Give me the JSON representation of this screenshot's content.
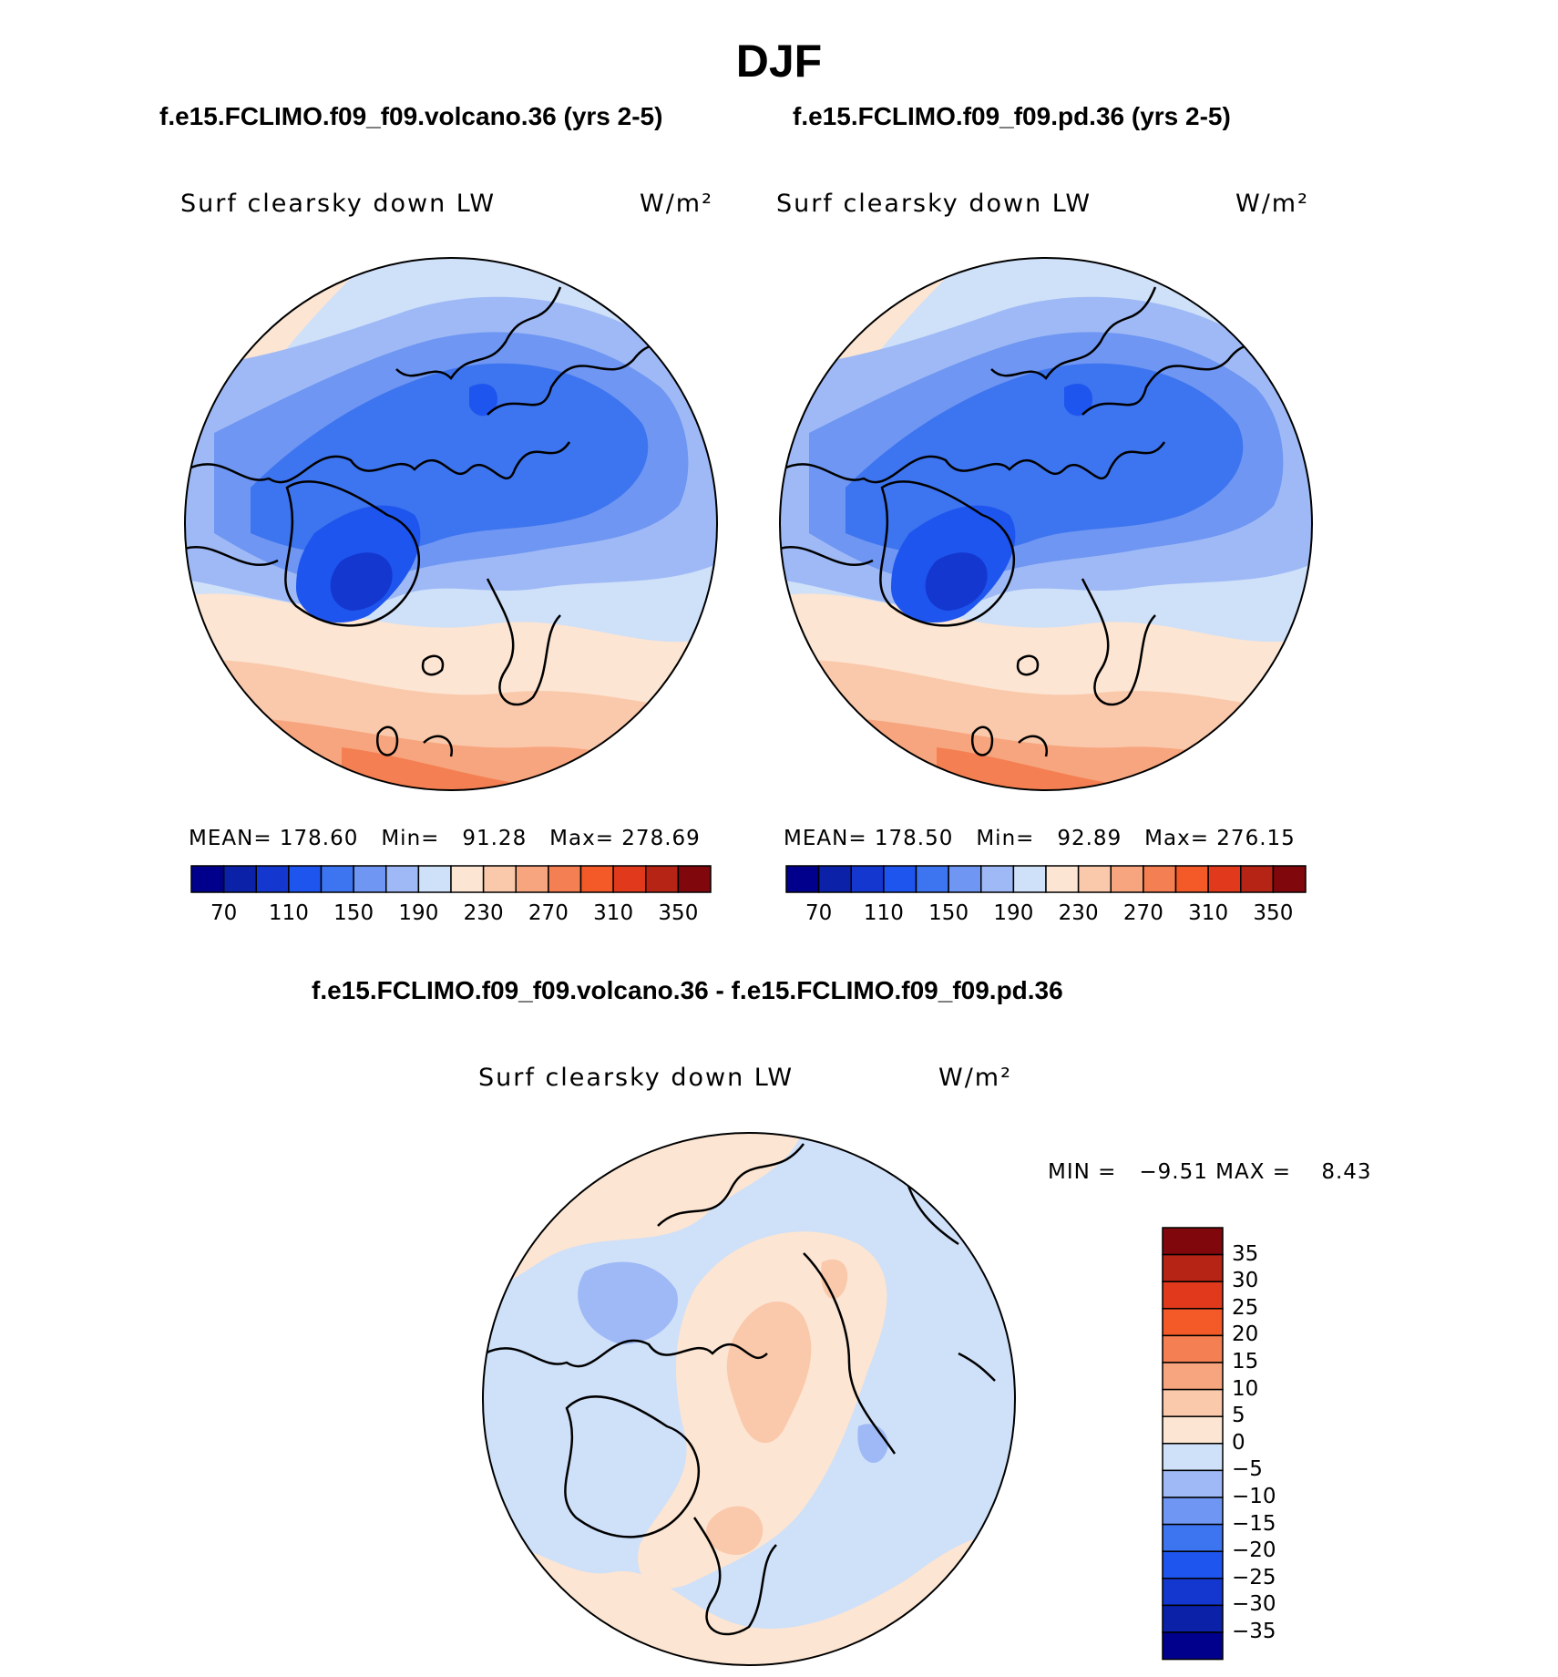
{
  "title": "DJF",
  "top_left": {
    "case": "f.e15.FCLIMO.f09_f09.volcano.36 (yrs 2-5)",
    "variable": "Surf clearsky down LW",
    "units": "W/m²",
    "stats": {
      "mean_label": "MEAN=",
      "mean": "178.60",
      "min_label": "Min=",
      "min": "91.28",
      "max_label": "Max=",
      "max": "278.69"
    }
  },
  "top_right": {
    "case": "f.e15.FCLIMO.f09_f09.pd.36 (yrs 2-5)",
    "variable": "Surf clearsky down LW",
    "units": "W/m²",
    "stats": {
      "mean_label": "MEAN=",
      "mean": "178.50",
      "min_label": "Min=",
      "min": "92.89",
      "max_label": "Max=",
      "max": "276.15"
    }
  },
  "abs_colorbar": {
    "tick_labels": [
      "70",
      "110",
      "150",
      "190",
      "230",
      "270",
      "310",
      "350"
    ],
    "colors": [
      "#00008c",
      "#0a21a8",
      "#1437cf",
      "#1e55ee",
      "#3d74ef",
      "#6e96f2",
      "#9eb9f5",
      "#cfe0f9",
      "#fce5d2",
      "#fac8aa",
      "#f7a57e",
      "#f47f52",
      "#f35a27",
      "#e0391b",
      "#b52414",
      "#80070c"
    ]
  },
  "difference": {
    "case": "f.e15.FCLIMO.f09_f09.volcano.36 - f.e15.FCLIMO.f09_f09.pd.36",
    "variable": "Surf clearsky down LW",
    "units": "W/m²",
    "min_label": "MIN =",
    "min": "−9.51",
    "max_label": "MAX =",
    "max": "8.43",
    "colorbar": {
      "tick_labels": [
        "35",
        "30",
        "25",
        "20",
        "15",
        "10",
        "5",
        "0",
        "−5",
        "−10",
        "−15",
        "−20",
        "−25",
        "−30",
        "−35"
      ],
      "colors": [
        "#80070c",
        "#b52414",
        "#e0391b",
        "#f35a27",
        "#f47f52",
        "#f7a57e",
        "#fac8aa",
        "#fce5d2",
        "#cfe0f9",
        "#9eb9f5",
        "#6e96f2",
        "#3d74ef",
        "#1e55ee",
        "#1437cf",
        "#0a21a8",
        "#00008c"
      ]
    }
  }
}
